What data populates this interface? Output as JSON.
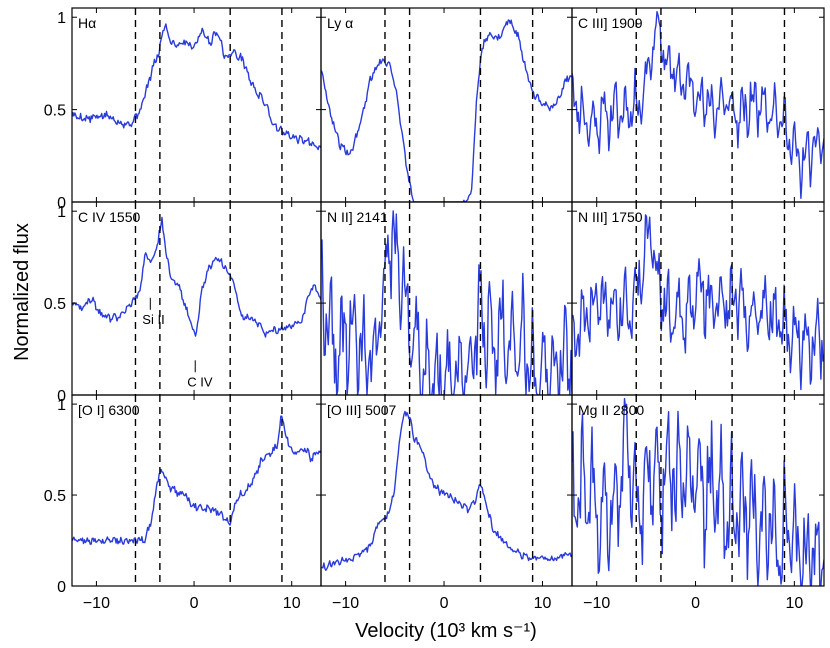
{
  "chart_data": {
    "type": "line",
    "xlabel": "Velocity (10³ km s⁻¹)",
    "ylabel": "Normalized flux",
    "xlim": [
      -12.5,
      13
    ],
    "ylim": [
      0,
      1.05
    ],
    "xticks": [
      -10,
      0,
      10
    ],
    "yticks": [
      0,
      0.5,
      1
    ],
    "xtick_labels": [
      "−10",
      "0",
      "10"
    ],
    "ytick_labels": [
      "0",
      "0.5",
      "1"
    ],
    "reference_lines_x": [
      -6,
      -3.5,
      3.7,
      9
    ],
    "panels": [
      {
        "label": "Hα",
        "row": 0,
        "col": 0,
        "mode": "smooth",
        "points": [
          [
            -12.5,
            0.47
          ],
          [
            -11,
            0.45
          ],
          [
            -9,
            0.47
          ],
          [
            -7.5,
            0.43
          ],
          [
            -6.5,
            0.42
          ],
          [
            -5.5,
            0.5
          ],
          [
            -4.8,
            0.62
          ],
          [
            -4.2,
            0.73
          ],
          [
            -3.6,
            0.81
          ],
          [
            -3.0,
            0.97
          ],
          [
            -2.5,
            0.88
          ],
          [
            -1.8,
            0.85
          ],
          [
            -1,
            0.87
          ],
          [
            0,
            0.84
          ],
          [
            0.8,
            0.93
          ],
          [
            1.6,
            0.86
          ],
          [
            2.4,
            0.93
          ],
          [
            3.2,
            0.78
          ],
          [
            4,
            0.81
          ],
          [
            5,
            0.77
          ],
          [
            5.8,
            0.65
          ],
          [
            6.6,
            0.58
          ],
          [
            7.4,
            0.53
          ],
          [
            8,
            0.43
          ],
          [
            9,
            0.38
          ],
          [
            10,
            0.35
          ],
          [
            11.5,
            0.33
          ],
          [
            13,
            0.3
          ]
        ]
      },
      {
        "label": "Ly α",
        "row": 0,
        "col": 1,
        "mode": "smooth",
        "points": [
          [
            -12.5,
            0.72
          ],
          [
            -11.5,
            0.47
          ],
          [
            -10.5,
            0.3
          ],
          [
            -9.5,
            0.26
          ],
          [
            -8.5,
            0.42
          ],
          [
            -7.5,
            0.66
          ],
          [
            -6.5,
            0.77
          ],
          [
            -5.5,
            0.75
          ],
          [
            -4.8,
            0.58
          ],
          [
            -4.2,
            0.34
          ],
          [
            -3.6,
            0.12
          ],
          [
            -3.1,
            0.0
          ],
          [
            2,
            0.0
          ],
          [
            2.8,
            0.06
          ],
          [
            3.3,
            0.55
          ],
          [
            3.8,
            0.82
          ],
          [
            4.6,
            0.92
          ],
          [
            5.5,
            0.88
          ],
          [
            6.5,
            0.99
          ],
          [
            7.5,
            0.9
          ],
          [
            8.3,
            0.72
          ],
          [
            9,
            0.6
          ],
          [
            10,
            0.53
          ],
          [
            11,
            0.5
          ],
          [
            11.8,
            0.58
          ],
          [
            12.5,
            0.67
          ],
          [
            13,
            0.69
          ]
        ]
      },
      {
        "label": "C III] 1909",
        "row": 0,
        "col": 2,
        "mode": "noisy",
        "seed": 11,
        "amp": 0.16,
        "points": [
          [
            -12.5,
            0.6
          ],
          [
            -11,
            0.42
          ],
          [
            -9,
            0.47
          ],
          [
            -7,
            0.5
          ],
          [
            -5.5,
            0.55
          ],
          [
            -4.6,
            0.78
          ],
          [
            -3.9,
            0.97
          ],
          [
            -3,
            0.75
          ],
          [
            -1.5,
            0.66
          ],
          [
            0,
            0.6
          ],
          [
            1.5,
            0.5
          ],
          [
            3,
            0.55
          ],
          [
            4.5,
            0.45
          ],
          [
            6,
            0.55
          ],
          [
            7.5,
            0.52
          ],
          [
            9,
            0.42
          ],
          [
            10.5,
            0.2
          ],
          [
            12,
            0.28
          ],
          [
            13,
            0.35
          ]
        ]
      },
      {
        "label": "C IV 1550",
        "row": 1,
        "col": 0,
        "mode": "smooth",
        "points": [
          [
            -12.5,
            0.5
          ],
          [
            -11.5,
            0.47
          ],
          [
            -10.5,
            0.53
          ],
          [
            -9.5,
            0.43
          ],
          [
            -8.5,
            0.42
          ],
          [
            -7.5,
            0.43
          ],
          [
            -6.5,
            0.5
          ],
          [
            -5.5,
            0.57
          ],
          [
            -5.0,
            0.78
          ],
          [
            -4.5,
            0.72
          ],
          [
            -3.9,
            0.78
          ],
          [
            -3.3,
            0.96
          ],
          [
            -2.8,
            0.74
          ],
          [
            -2.2,
            0.62
          ],
          [
            -1.6,
            0.6
          ],
          [
            -1,
            0.5
          ],
          [
            -0.4,
            0.4
          ],
          [
            0.2,
            0.32
          ],
          [
            0.8,
            0.58
          ],
          [
            1.6,
            0.7
          ],
          [
            2.4,
            0.74
          ],
          [
            3.2,
            0.7
          ],
          [
            4,
            0.62
          ],
          [
            4.8,
            0.44
          ],
          [
            5.6,
            0.42
          ],
          [
            6.4,
            0.4
          ],
          [
            7.2,
            0.33
          ],
          [
            8,
            0.36
          ],
          [
            9,
            0.35
          ],
          [
            10,
            0.38
          ],
          [
            11,
            0.4
          ],
          [
            11.8,
            0.55
          ],
          [
            12.4,
            0.6
          ],
          [
            13,
            0.5
          ]
        ]
      },
      {
        "label": "N II] 2141",
        "row": 1,
        "col": 1,
        "mode": "noisy",
        "seed": 22,
        "amp": 0.32,
        "points": [
          [
            -12.5,
            0.55
          ],
          [
            -11,
            0.2
          ],
          [
            -9.5,
            0.35
          ],
          [
            -8,
            0.18
          ],
          [
            -7,
            0.25
          ],
          [
            -6.2,
            0.5
          ],
          [
            -5.6,
            0.85
          ],
          [
            -5,
            0.8
          ],
          [
            -4.2,
            0.72
          ],
          [
            -3.5,
            0.3
          ],
          [
            -2,
            0.12
          ],
          [
            0,
            0.08
          ],
          [
            2,
            0.1
          ],
          [
            3,
            0.22
          ],
          [
            3.8,
            0.45
          ],
          [
            5,
            0.3
          ],
          [
            6.5,
            0.35
          ],
          [
            8,
            0.28
          ],
          [
            9.5,
            0.08
          ],
          [
            10.5,
            0.15
          ],
          [
            12,
            0.2
          ],
          [
            13,
            0.22
          ]
        ]
      },
      {
        "label": "N III] 1750",
        "row": 1,
        "col": 2,
        "mode": "noisy",
        "seed": 33,
        "amp": 0.22,
        "points": [
          [
            -12.5,
            0.3
          ],
          [
            -11,
            0.42
          ],
          [
            -9.5,
            0.52
          ],
          [
            -8,
            0.5
          ],
          [
            -6.5,
            0.5
          ],
          [
            -5.3,
            0.7
          ],
          [
            -4.5,
            0.97
          ],
          [
            -3.8,
            0.6
          ],
          [
            -2.5,
            0.4
          ],
          [
            -1,
            0.45
          ],
          [
            0.5,
            0.58
          ],
          [
            1.8,
            0.5
          ],
          [
            3,
            0.48
          ],
          [
            4.3,
            0.55
          ],
          [
            5.5,
            0.42
          ],
          [
            7,
            0.48
          ],
          [
            8.5,
            0.38
          ],
          [
            10,
            0.3
          ],
          [
            11.5,
            0.28
          ],
          [
            13,
            0.3
          ]
        ]
      },
      {
        "label": "[O I] 6300",
        "row": 2,
        "col": 0,
        "mode": "smooth",
        "points": [
          [
            -12.5,
            0.25
          ],
          [
            -11.5,
            0.26
          ],
          [
            -10,
            0.24
          ],
          [
            -8.5,
            0.26
          ],
          [
            -7,
            0.24
          ],
          [
            -6,
            0.25
          ],
          [
            -5,
            0.26
          ],
          [
            -4.3,
            0.37
          ],
          [
            -3.8,
            0.58
          ],
          [
            -3.3,
            0.64
          ],
          [
            -2.6,
            0.55
          ],
          [
            -1.8,
            0.52
          ],
          [
            -1,
            0.5
          ],
          [
            0,
            0.44
          ],
          [
            1,
            0.42
          ],
          [
            2,
            0.42
          ],
          [
            3,
            0.38
          ],
          [
            3.7,
            0.35
          ],
          [
            4.5,
            0.5
          ],
          [
            5.3,
            0.52
          ],
          [
            6,
            0.58
          ],
          [
            7,
            0.7
          ],
          [
            7.8,
            0.72
          ],
          [
            8.5,
            0.78
          ],
          [
            9,
            0.95
          ],
          [
            9.5,
            0.8
          ],
          [
            10.3,
            0.72
          ],
          [
            11.3,
            0.76
          ],
          [
            12,
            0.7
          ],
          [
            13,
            0.74
          ]
        ]
      },
      {
        "label": "[O III] 5007",
        "row": 2,
        "col": 1,
        "mode": "smooth",
        "points": [
          [
            -12.5,
            0.1
          ],
          [
            -11,
            0.13
          ],
          [
            -9.5,
            0.15
          ],
          [
            -8.5,
            0.18
          ],
          [
            -7.5,
            0.22
          ],
          [
            -6.8,
            0.33
          ],
          [
            -6,
            0.37
          ],
          [
            -5.5,
            0.42
          ],
          [
            -5,
            0.55
          ],
          [
            -4.5,
            0.82
          ],
          [
            -4,
            0.96
          ],
          [
            -3.5,
            0.93
          ],
          [
            -3,
            0.8
          ],
          [
            -2.5,
            0.78
          ],
          [
            -2,
            0.7
          ],
          [
            -1.5,
            0.6
          ],
          [
            -0.5,
            0.52
          ],
          [
            0.5,
            0.5
          ],
          [
            1.5,
            0.46
          ],
          [
            2.5,
            0.42
          ],
          [
            3.2,
            0.48
          ],
          [
            3.7,
            0.57
          ],
          [
            4.3,
            0.45
          ],
          [
            5,
            0.3
          ],
          [
            6,
            0.25
          ],
          [
            7,
            0.2
          ],
          [
            8,
            0.17
          ],
          [
            9,
            0.15
          ],
          [
            10,
            0.16
          ],
          [
            11,
            0.15
          ],
          [
            12,
            0.17
          ],
          [
            13,
            0.17
          ]
        ]
      },
      {
        "label": "Mg II 2800",
        "row": 2,
        "col": 2,
        "mode": "noisy",
        "seed": 44,
        "amp": 0.38,
        "points": [
          [
            -12.5,
            0.45
          ],
          [
            -11,
            0.55
          ],
          [
            -10,
            0.4
          ],
          [
            -9,
            0.45
          ],
          [
            -8,
            0.5
          ],
          [
            -7.2,
            0.85
          ],
          [
            -6.5,
            0.55
          ],
          [
            -5.5,
            0.45
          ],
          [
            -4.5,
            0.62
          ],
          [
            -3.5,
            0.6
          ],
          [
            -2.5,
            0.62
          ],
          [
            -1.5,
            0.58
          ],
          [
            -0.5,
            0.55
          ],
          [
            1,
            0.52
          ],
          [
            2.5,
            0.48
          ],
          [
            4,
            0.42
          ],
          [
            5.5,
            0.4
          ],
          [
            7,
            0.36
          ],
          [
            8.5,
            0.25
          ],
          [
            10,
            0.2
          ],
          [
            11.5,
            0.15
          ],
          [
            13,
            0.18
          ]
        ]
      }
    ],
    "annotations": [
      {
        "text": "Si II",
        "panel_row": 1,
        "panel_col": 0,
        "x": -5.3,
        "y": 0.42
      },
      {
        "text": "C IV",
        "panel_row": 1,
        "panel_col": 0,
        "x": -0.7,
        "y": 0.08
      }
    ],
    "colors": {
      "line": "#2a3bdc",
      "frame": "#000000"
    }
  }
}
